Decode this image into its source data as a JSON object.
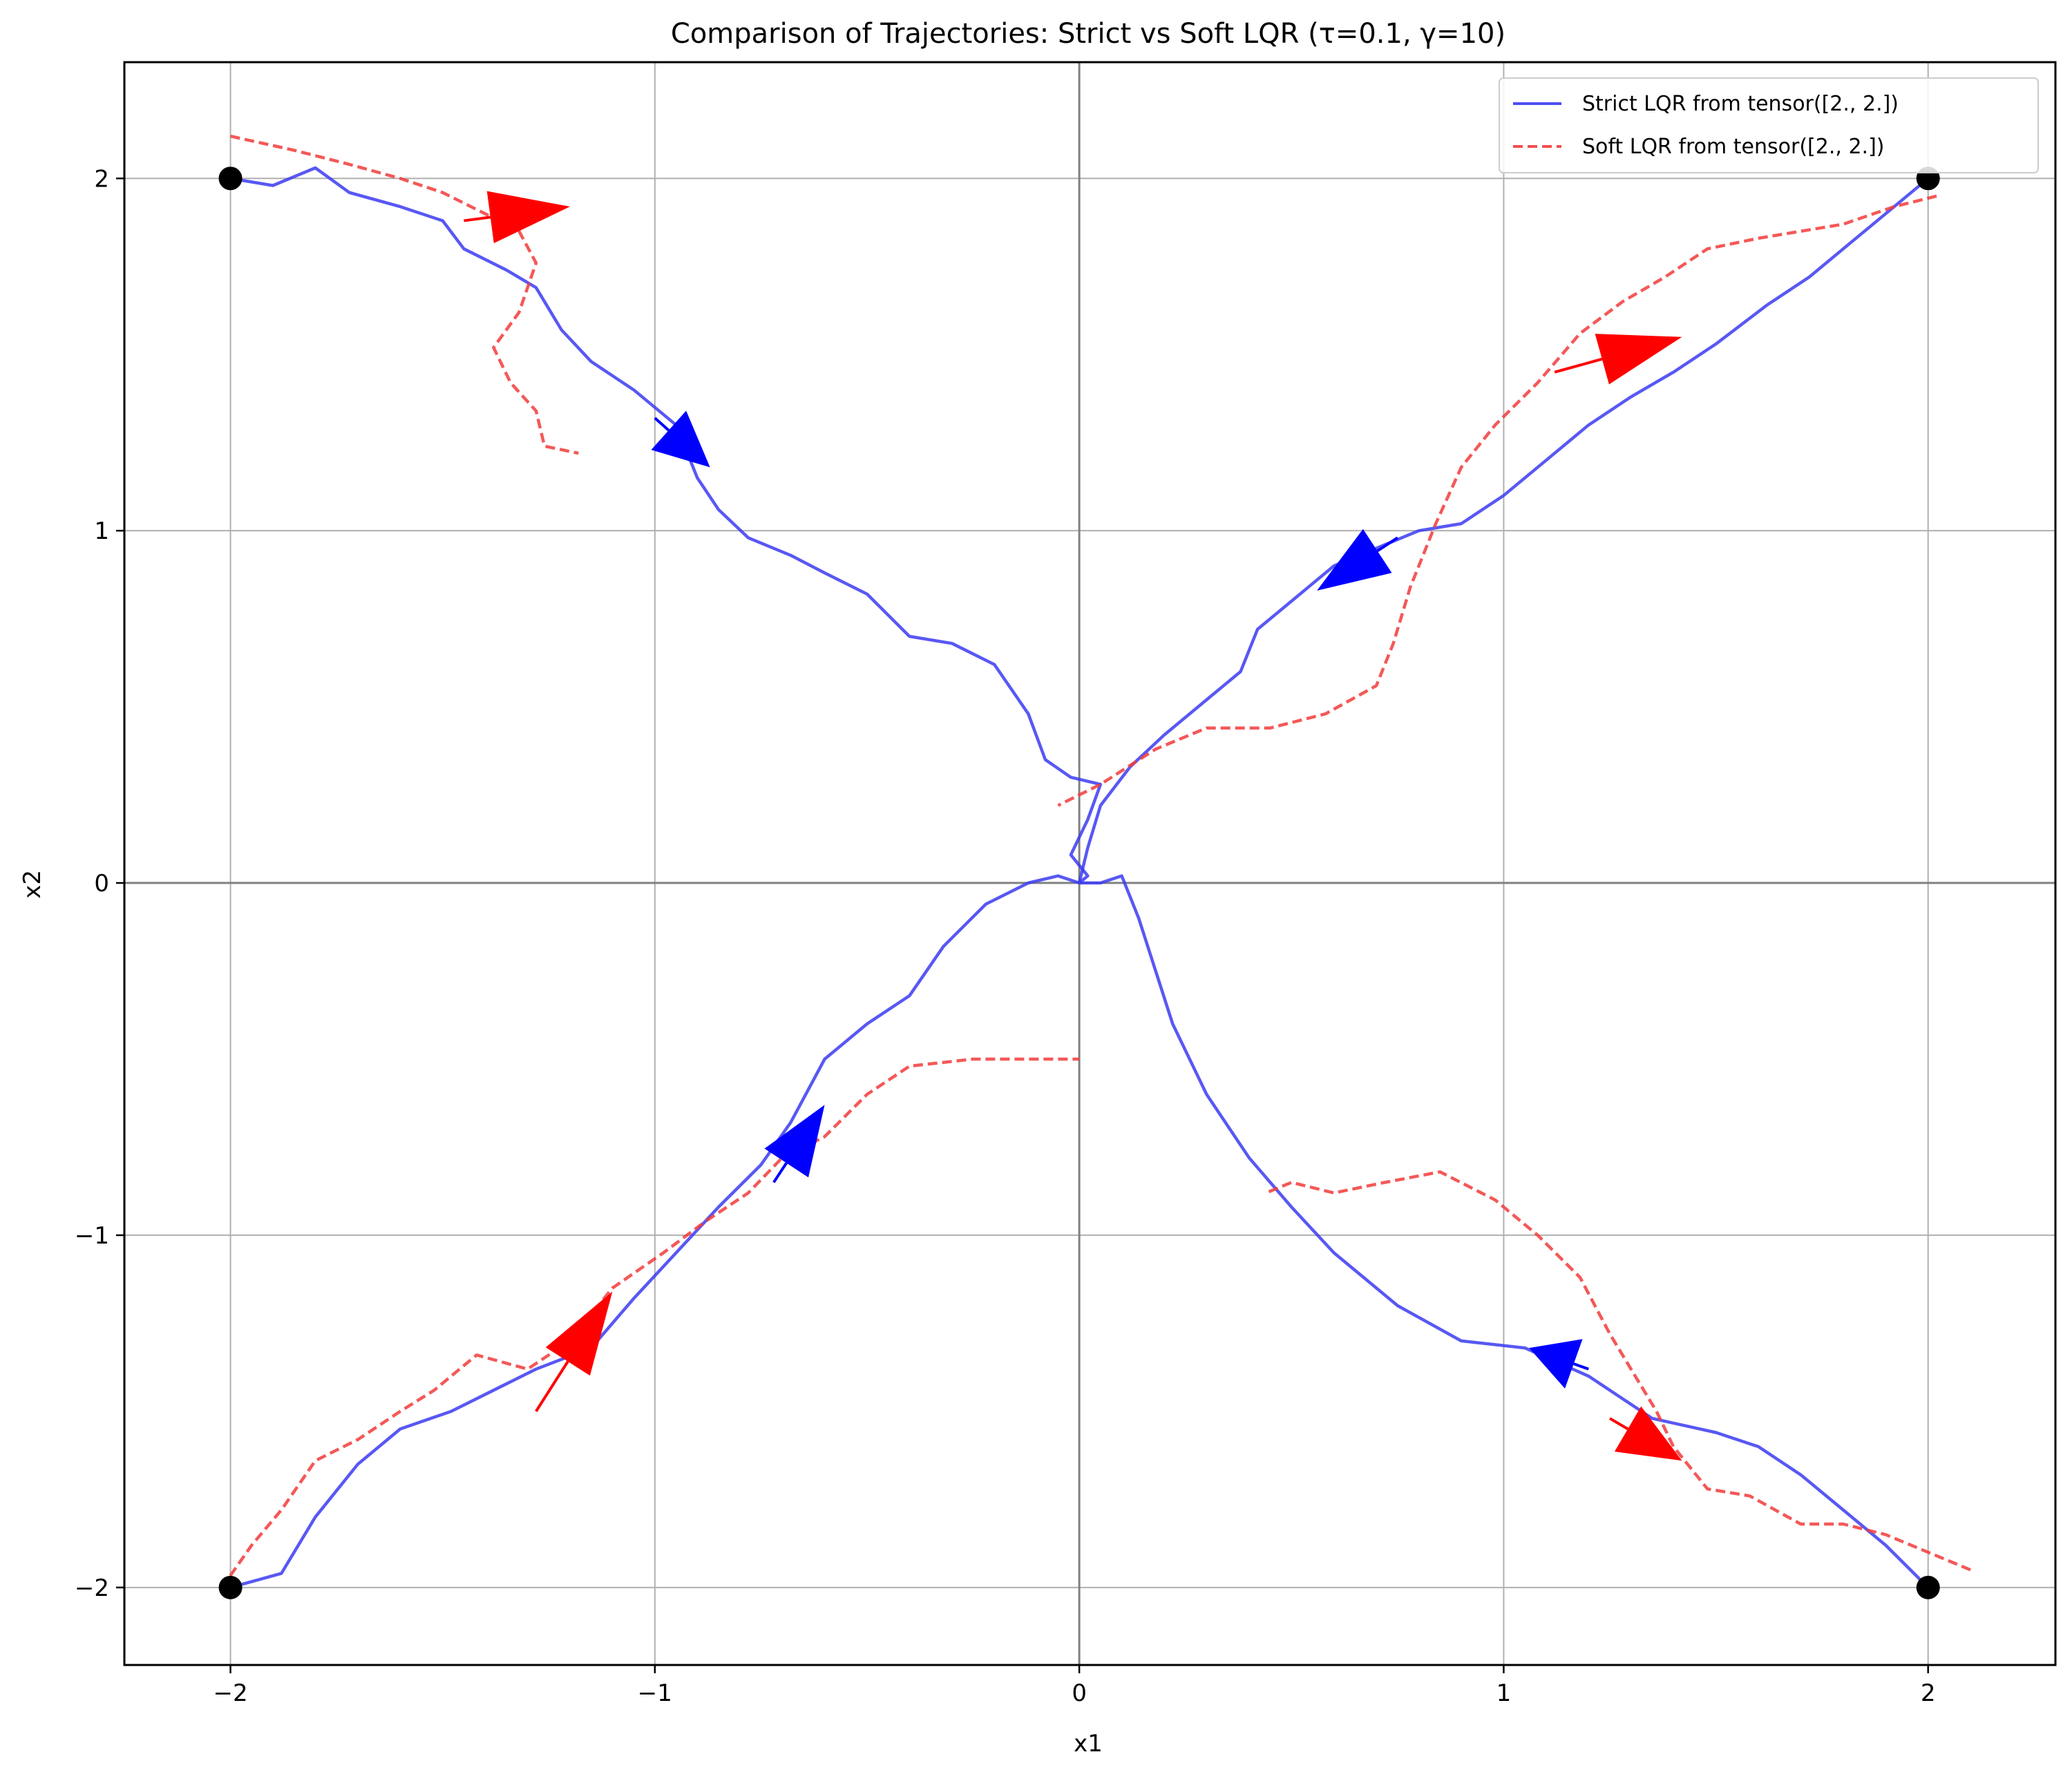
{
  "chart_data": {
    "type": "line",
    "title": "Comparison of Trajectories: Strict vs Soft LQR (τ=0.1, γ=10)",
    "xlabel": "x1",
    "ylabel": "x2",
    "xlim": [
      -2.25,
      2.3
    ],
    "ylim": [
      -2.22,
      2.33
    ],
    "xticks": [
      -2,
      -1,
      0,
      1,
      2
    ],
    "yticks": [
      -2,
      -1,
      0,
      1,
      2
    ],
    "xtick_labels": [
      "−2",
      "−1",
      "0",
      "1",
      "2"
    ],
    "ytick_labels": [
      "−2",
      "−1",
      "0",
      "1",
      "2"
    ],
    "grid": true,
    "legend_position": "top-right",
    "legend": [
      {
        "label": "Strict LQR from tensor([2., 2.])",
        "color": "#3b3bf2",
        "style": "solid"
      },
      {
        "label": "Soft LQR from tensor([2., 2.])",
        "color": "#f23b3b",
        "style": "dashed"
      }
    ],
    "start_points": [
      [
        -2,
        2
      ],
      [
        2,
        2
      ],
      [
        -2,
        -2
      ],
      [
        2,
        -2
      ]
    ],
    "series": [
      {
        "kind": "strict",
        "color": "#3b3bf2",
        "points": [
          [
            -2,
            2
          ],
          [
            -1.9,
            1.98
          ],
          [
            -1.8,
            2.03
          ],
          [
            -1.72,
            1.96
          ],
          [
            -1.6,
            1.92
          ],
          [
            -1.5,
            1.88
          ],
          [
            -1.45,
            1.8
          ],
          [
            -1.35,
            1.74
          ],
          [
            -1.28,
            1.69
          ],
          [
            -1.22,
            1.57
          ],
          [
            -1.15,
            1.48
          ],
          [
            -1.05,
            1.4
          ],
          [
            -0.95,
            1.3
          ],
          [
            -0.9,
            1.15
          ],
          [
            -0.85,
            1.06
          ],
          [
            -0.78,
            0.98
          ],
          [
            -0.68,
            0.93
          ],
          [
            -0.6,
            0.88
          ],
          [
            -0.5,
            0.82
          ],
          [
            -0.4,
            0.7
          ],
          [
            -0.3,
            0.68
          ],
          [
            -0.2,
            0.62
          ],
          [
            -0.12,
            0.48
          ],
          [
            -0.08,
            0.35
          ],
          [
            -0.02,
            0.3
          ],
          [
            0.05,
            0.28
          ],
          [
            0.02,
            0.18
          ],
          [
            -0.02,
            0.08
          ],
          [
            0.02,
            0.02
          ],
          [
            0,
            0
          ]
        ]
      },
      {
        "kind": "strict",
        "color": "#3b3bf2",
        "points": [
          [
            2,
            2
          ],
          [
            1.9,
            1.9
          ],
          [
            1.8,
            1.8
          ],
          [
            1.72,
            1.72
          ],
          [
            1.62,
            1.64
          ],
          [
            1.5,
            1.53
          ],
          [
            1.4,
            1.45
          ],
          [
            1.3,
            1.38
          ],
          [
            1.2,
            1.3
          ],
          [
            1.1,
            1.2
          ],
          [
            1.0,
            1.1
          ],
          [
            0.9,
            1.02
          ],
          [
            0.8,
            1.0
          ],
          [
            0.72,
            0.96
          ],
          [
            0.6,
            0.9
          ],
          [
            0.5,
            0.8
          ],
          [
            0.42,
            0.72
          ],
          [
            0.38,
            0.6
          ],
          [
            0.3,
            0.52
          ],
          [
            0.2,
            0.42
          ],
          [
            0.12,
            0.33
          ],
          [
            0.05,
            0.22
          ],
          [
            0.02,
            0.1
          ],
          [
            0,
            0
          ]
        ]
      },
      {
        "kind": "strict",
        "color": "#3b3bf2",
        "points": [
          [
            -2,
            -2
          ],
          [
            -1.88,
            -1.96
          ],
          [
            -1.8,
            -1.8
          ],
          [
            -1.7,
            -1.65
          ],
          [
            -1.6,
            -1.55
          ],
          [
            -1.48,
            -1.5
          ],
          [
            -1.38,
            -1.44
          ],
          [
            -1.28,
            -1.38
          ],
          [
            -1.15,
            -1.32
          ],
          [
            -1.05,
            -1.18
          ],
          [
            -0.95,
            -1.05
          ],
          [
            -0.85,
            -0.92
          ],
          [
            -0.75,
            -0.8
          ],
          [
            -0.68,
            -0.68
          ],
          [
            -0.6,
            -0.5
          ],
          [
            -0.5,
            -0.4
          ],
          [
            -0.4,
            -0.32
          ],
          [
            -0.32,
            -0.18
          ],
          [
            -0.22,
            -0.06
          ],
          [
            -0.12,
            0.0
          ],
          [
            -0.05,
            0.02
          ],
          [
            0,
            0
          ]
        ]
      },
      {
        "kind": "strict",
        "color": "#3b3bf2",
        "points": [
          [
            2,
            -2
          ],
          [
            1.9,
            -1.88
          ],
          [
            1.8,
            -1.78
          ],
          [
            1.7,
            -1.68
          ],
          [
            1.6,
            -1.6
          ],
          [
            1.5,
            -1.56
          ],
          [
            1.35,
            -1.52
          ],
          [
            1.2,
            -1.4
          ],
          [
            1.05,
            -1.32
          ],
          [
            0.9,
            -1.3
          ],
          [
            0.75,
            -1.2
          ],
          [
            0.6,
            -1.05
          ],
          [
            0.5,
            -0.92
          ],
          [
            0.4,
            -0.78
          ],
          [
            0.3,
            -0.6
          ],
          [
            0.22,
            -0.4
          ],
          [
            0.18,
            -0.25
          ],
          [
            0.14,
            -0.1
          ],
          [
            0.1,
            0.02
          ],
          [
            0.05,
            0.0
          ],
          [
            0,
            0
          ]
        ]
      },
      {
        "kind": "soft",
        "color": "#f23b3b",
        "points": [
          [
            -2,
            2.12
          ],
          [
            -1.85,
            2.08
          ],
          [
            -1.72,
            2.04
          ],
          [
            -1.6,
            2.0
          ],
          [
            -1.5,
            1.96
          ],
          [
            -1.4,
            1.9
          ],
          [
            -1.32,
            1.85
          ],
          [
            -1.28,
            1.76
          ],
          [
            -1.32,
            1.62
          ],
          [
            -1.38,
            1.52
          ],
          [
            -1.34,
            1.42
          ],
          [
            -1.28,
            1.34
          ],
          [
            -1.26,
            1.24
          ],
          [
            -1.18,
            1.22
          ]
        ]
      },
      {
        "kind": "soft",
        "color": "#f23b3b",
        "points": [
          [
            2.02,
            1.95
          ],
          [
            1.92,
            1.92
          ],
          [
            1.8,
            1.87
          ],
          [
            1.7,
            1.85
          ],
          [
            1.6,
            1.83
          ],
          [
            1.48,
            1.8
          ],
          [
            1.38,
            1.72
          ],
          [
            1.28,
            1.65
          ],
          [
            1.18,
            1.56
          ],
          [
            1.08,
            1.42
          ],
          [
            0.98,
            1.3
          ],
          [
            0.9,
            1.18
          ],
          [
            0.84,
            1.02
          ],
          [
            0.78,
            0.84
          ],
          [
            0.74,
            0.68
          ],
          [
            0.7,
            0.56
          ],
          [
            0.58,
            0.48
          ],
          [
            0.45,
            0.44
          ],
          [
            0.3,
            0.44
          ],
          [
            0.18,
            0.38
          ],
          [
            0.05,
            0.28
          ],
          [
            -0.05,
            0.22
          ]
        ]
      },
      {
        "kind": "soft",
        "color": "#f23b3b",
        "points": [
          [
            -2.02,
            -2.0
          ],
          [
            -1.95,
            -1.88
          ],
          [
            -1.88,
            -1.78
          ],
          [
            -1.8,
            -1.64
          ],
          [
            -1.7,
            -1.58
          ],
          [
            -1.6,
            -1.5
          ],
          [
            -1.52,
            -1.44
          ],
          [
            -1.42,
            -1.34
          ],
          [
            -1.3,
            -1.38
          ],
          [
            -1.2,
            -1.3
          ],
          [
            -1.1,
            -1.15
          ],
          [
            -0.98,
            -1.05
          ],
          [
            -0.88,
            -0.96
          ],
          [
            -0.78,
            -0.88
          ],
          [
            -0.7,
            -0.78
          ],
          [
            -0.6,
            -0.72
          ],
          [
            -0.5,
            -0.6
          ],
          [
            -0.4,
            -0.52
          ],
          [
            -0.25,
            -0.5
          ],
          [
            -0.1,
            -0.5
          ],
          [
            0,
            -0.5
          ]
        ]
      },
      {
        "kind": "soft",
        "color": "#f23b3b",
        "points": [
          [
            2.1,
            -1.95
          ],
          [
            2.0,
            -1.9
          ],
          [
            1.9,
            -1.85
          ],
          [
            1.8,
            -1.82
          ],
          [
            1.7,
            -1.82
          ],
          [
            1.58,
            -1.74
          ],
          [
            1.48,
            -1.72
          ],
          [
            1.4,
            -1.6
          ],
          [
            1.36,
            -1.5
          ],
          [
            1.32,
            -1.42
          ],
          [
            1.25,
            -1.28
          ],
          [
            1.18,
            -1.12
          ],
          [
            1.08,
            -1.0
          ],
          [
            0.98,
            -0.9
          ],
          [
            0.85,
            -0.82
          ],
          [
            0.72,
            -0.85
          ],
          [
            0.6,
            -0.88
          ],
          [
            0.5,
            -0.85
          ],
          [
            0.44,
            -0.88
          ]
        ]
      }
    ],
    "arrows": [
      {
        "color": "#ff0000",
        "tail": [
          -1.45,
          1.88
        ],
        "tip": [
          -1.2,
          1.92
        ]
      },
      {
        "color": "#0000ff",
        "tail": [
          -1.0,
          1.32
        ],
        "tip": [
          -0.87,
          1.18
        ]
      },
      {
        "color": "#ff0000",
        "tail": [
          1.12,
          1.45
        ],
        "tip": [
          1.42,
          1.55
        ]
      },
      {
        "color": "#0000ff",
        "tail": [
          0.75,
          0.98
        ],
        "tip": [
          0.56,
          0.83
        ]
      },
      {
        "color": "#ff0000",
        "tail": [
          -1.28,
          -1.5
        ],
        "tip": [
          -1.1,
          -1.16
        ]
      },
      {
        "color": "#0000ff",
        "tail": [
          -0.72,
          -0.85
        ],
        "tip": [
          -0.6,
          -0.63
        ]
      },
      {
        "color": "#0000ff",
        "tail": [
          1.2,
          -1.38
        ],
        "tip": [
          1.06,
          -1.32
        ]
      },
      {
        "color": "#ff0000",
        "tail": [
          1.25,
          -1.52
        ],
        "tip": [
          1.42,
          -1.64
        ]
      }
    ]
  }
}
